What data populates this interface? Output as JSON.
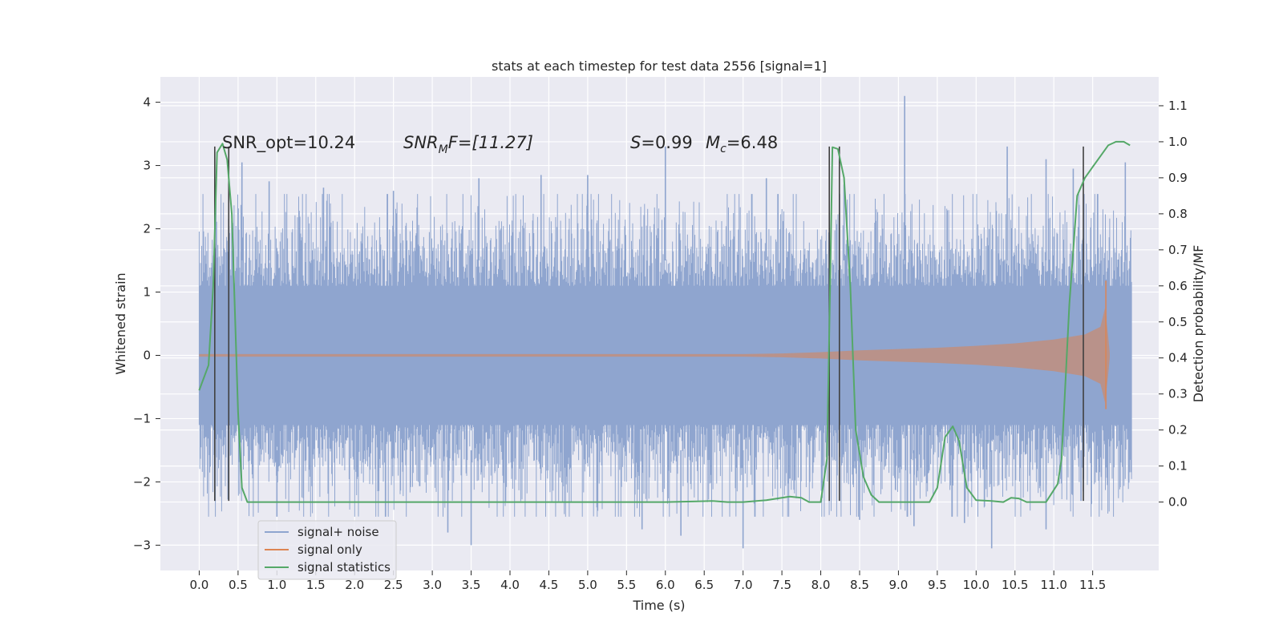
{
  "chart_data": {
    "type": "line",
    "title": "stats at each timestep for test data 2556 [signal=1]",
    "xlabel": "Time (s)",
    "ylabel_left": "Whitened strain",
    "ylabel_right": "Detection probability/MF",
    "xlim": [
      -0.5,
      12.35
    ],
    "ylim_left": [
      -3.4,
      4.4
    ],
    "ylim_right": [
      -0.19,
      1.18
    ],
    "x_ticks": [
      "0.0",
      "0.5",
      "1.0",
      "1.5",
      "2.0",
      "2.5",
      "3.0",
      "3.5",
      "4.0",
      "4.5",
      "5.0",
      "5.5",
      "6.0",
      "6.5",
      "7.0",
      "7.5",
      "8.0",
      "8.5",
      "9.0",
      "9.5",
      "10.0",
      "10.5",
      "11.0",
      "11.5"
    ],
    "y_ticks_left": [
      "−3",
      "−2",
      "−1",
      "0",
      "1",
      "2",
      "3",
      "4"
    ],
    "y_ticks_right": [
      "0.0",
      "0.1",
      "0.2",
      "0.3",
      "0.4",
      "0.5",
      "0.6",
      "0.7",
      "0.8",
      "0.9",
      "1.0",
      "1.1"
    ],
    "grid": true,
    "legend_position": "lower-left",
    "annotations": {
      "snr_opt": "SNR_opt=10.24",
      "snr_mf_main": "SNR",
      "snr_mf_sub": "M",
      "snr_mf_tail": "F=[11.27]",
      "s_main": "S",
      "s_tail": "=0.99",
      "mc_main": "M",
      "mc_sub": "c",
      "mc_tail": "=6.48"
    },
    "series": [
      {
        "name": "signal+ noise",
        "color": "#8fa5cf",
        "x_range": [
          0.0,
          12.0
        ],
        "typical_band": [
          -1.1,
          1.1
        ],
        "peak_values": [
          [
            0.55,
            3.05
          ],
          [
            0.9,
            2.75
          ],
          [
            1.6,
            2.65
          ],
          [
            2.5,
            2.6
          ],
          [
            3.6,
            2.8
          ],
          [
            4.4,
            2.85
          ],
          [
            5.0,
            2.85
          ],
          [
            6.0,
            3.3
          ],
          [
            7.3,
            2.8
          ],
          [
            8.3,
            2.7
          ],
          [
            9.08,
            4.1
          ],
          [
            10.4,
            3.3
          ],
          [
            10.9,
            3.1
          ],
          [
            11.25,
            2.95
          ],
          [
            11.92,
            3.05
          ]
        ],
        "trough_values": [
          [
            1.0,
            -2.55
          ],
          [
            3.2,
            -2.8
          ],
          [
            3.5,
            -3.0
          ],
          [
            5.7,
            -2.75
          ],
          [
            6.2,
            -2.85
          ],
          [
            7.0,
            -3.05
          ],
          [
            8.5,
            -2.6
          ],
          [
            9.2,
            -2.7
          ],
          [
            9.85,
            -2.65
          ],
          [
            10.2,
            -3.05
          ],
          [
            10.9,
            -2.75
          ],
          [
            11.35,
            -2.3
          ]
        ]
      },
      {
        "name": "signal only",
        "color": "#dd8452",
        "x_range": [
          0.0,
          11.72
        ],
        "envelope": [
          [
            0.0,
            0.02
          ],
          [
            7.0,
            0.02
          ],
          [
            7.5,
            0.03
          ],
          [
            8.0,
            0.05
          ],
          [
            8.5,
            0.08
          ],
          [
            9.0,
            0.1
          ],
          [
            9.5,
            0.12
          ],
          [
            10.0,
            0.15
          ],
          [
            10.5,
            0.19
          ],
          [
            11.0,
            0.25
          ],
          [
            11.4,
            0.33
          ],
          [
            11.6,
            0.45
          ],
          [
            11.66,
            0.75
          ],
          [
            11.7,
            0.3
          ],
          [
            11.72,
            0.03
          ]
        ],
        "peak": [
          11.67,
          1.18
        ],
        "trough": [
          11.67,
          -0.85
        ]
      },
      {
        "name": "signal statistics",
        "color": "#55a868",
        "axis": "right",
        "x": [
          0.0,
          0.12,
          0.18,
          0.23,
          0.3,
          0.36,
          0.42,
          0.5,
          0.55,
          0.62,
          1.5,
          3.0,
          4.5,
          5.5,
          6.0,
          6.4,
          6.6,
          6.8,
          7.0,
          7.3,
          7.6,
          7.75,
          7.85,
          8.0,
          8.08,
          8.12,
          8.15,
          8.22,
          8.3,
          8.38,
          8.45,
          8.55,
          8.65,
          8.75,
          9.0,
          9.4,
          9.5,
          9.6,
          9.7,
          9.78,
          9.88,
          10.0,
          10.2,
          10.35,
          10.45,
          10.55,
          10.65,
          10.75,
          10.9,
          11.05,
          11.1,
          11.2,
          11.3,
          11.4,
          11.5,
          11.6,
          11.7,
          11.8,
          11.9,
          11.98
        ],
        "y": [
          0.31,
          0.38,
          0.6,
          0.97,
          0.995,
          0.95,
          0.8,
          0.25,
          0.04,
          0.0,
          0.0,
          0.0,
          0.0,
          0.0,
          0.0,
          0.002,
          0.003,
          0.0,
          0.0,
          0.005,
          0.015,
          0.012,
          0.0,
          0.0,
          0.12,
          0.6,
          0.985,
          0.98,
          0.9,
          0.6,
          0.2,
          0.07,
          0.02,
          0.0,
          0.0,
          0.0,
          0.04,
          0.18,
          0.21,
          0.17,
          0.04,
          0.005,
          0.003,
          0.0,
          0.012,
          0.01,
          0.0,
          0.0,
          0.0,
          0.05,
          0.12,
          0.55,
          0.85,
          0.9,
          0.93,
          0.96,
          0.99,
          1.0,
          1.0,
          0.99
        ]
      }
    ],
    "vertical_markers": [
      {
        "x": 0.2,
        "top": 3.3,
        "bottom": -2.3
      },
      {
        "x": 0.38,
        "top": 3.3,
        "bottom": -2.3
      },
      {
        "x": 8.11,
        "top": 3.3,
        "bottom": -2.3
      },
      {
        "x": 8.24,
        "top": 3.3,
        "bottom": -2.3
      },
      {
        "x": 11.38,
        "top": 3.3,
        "bottom": -2.3
      }
    ]
  }
}
